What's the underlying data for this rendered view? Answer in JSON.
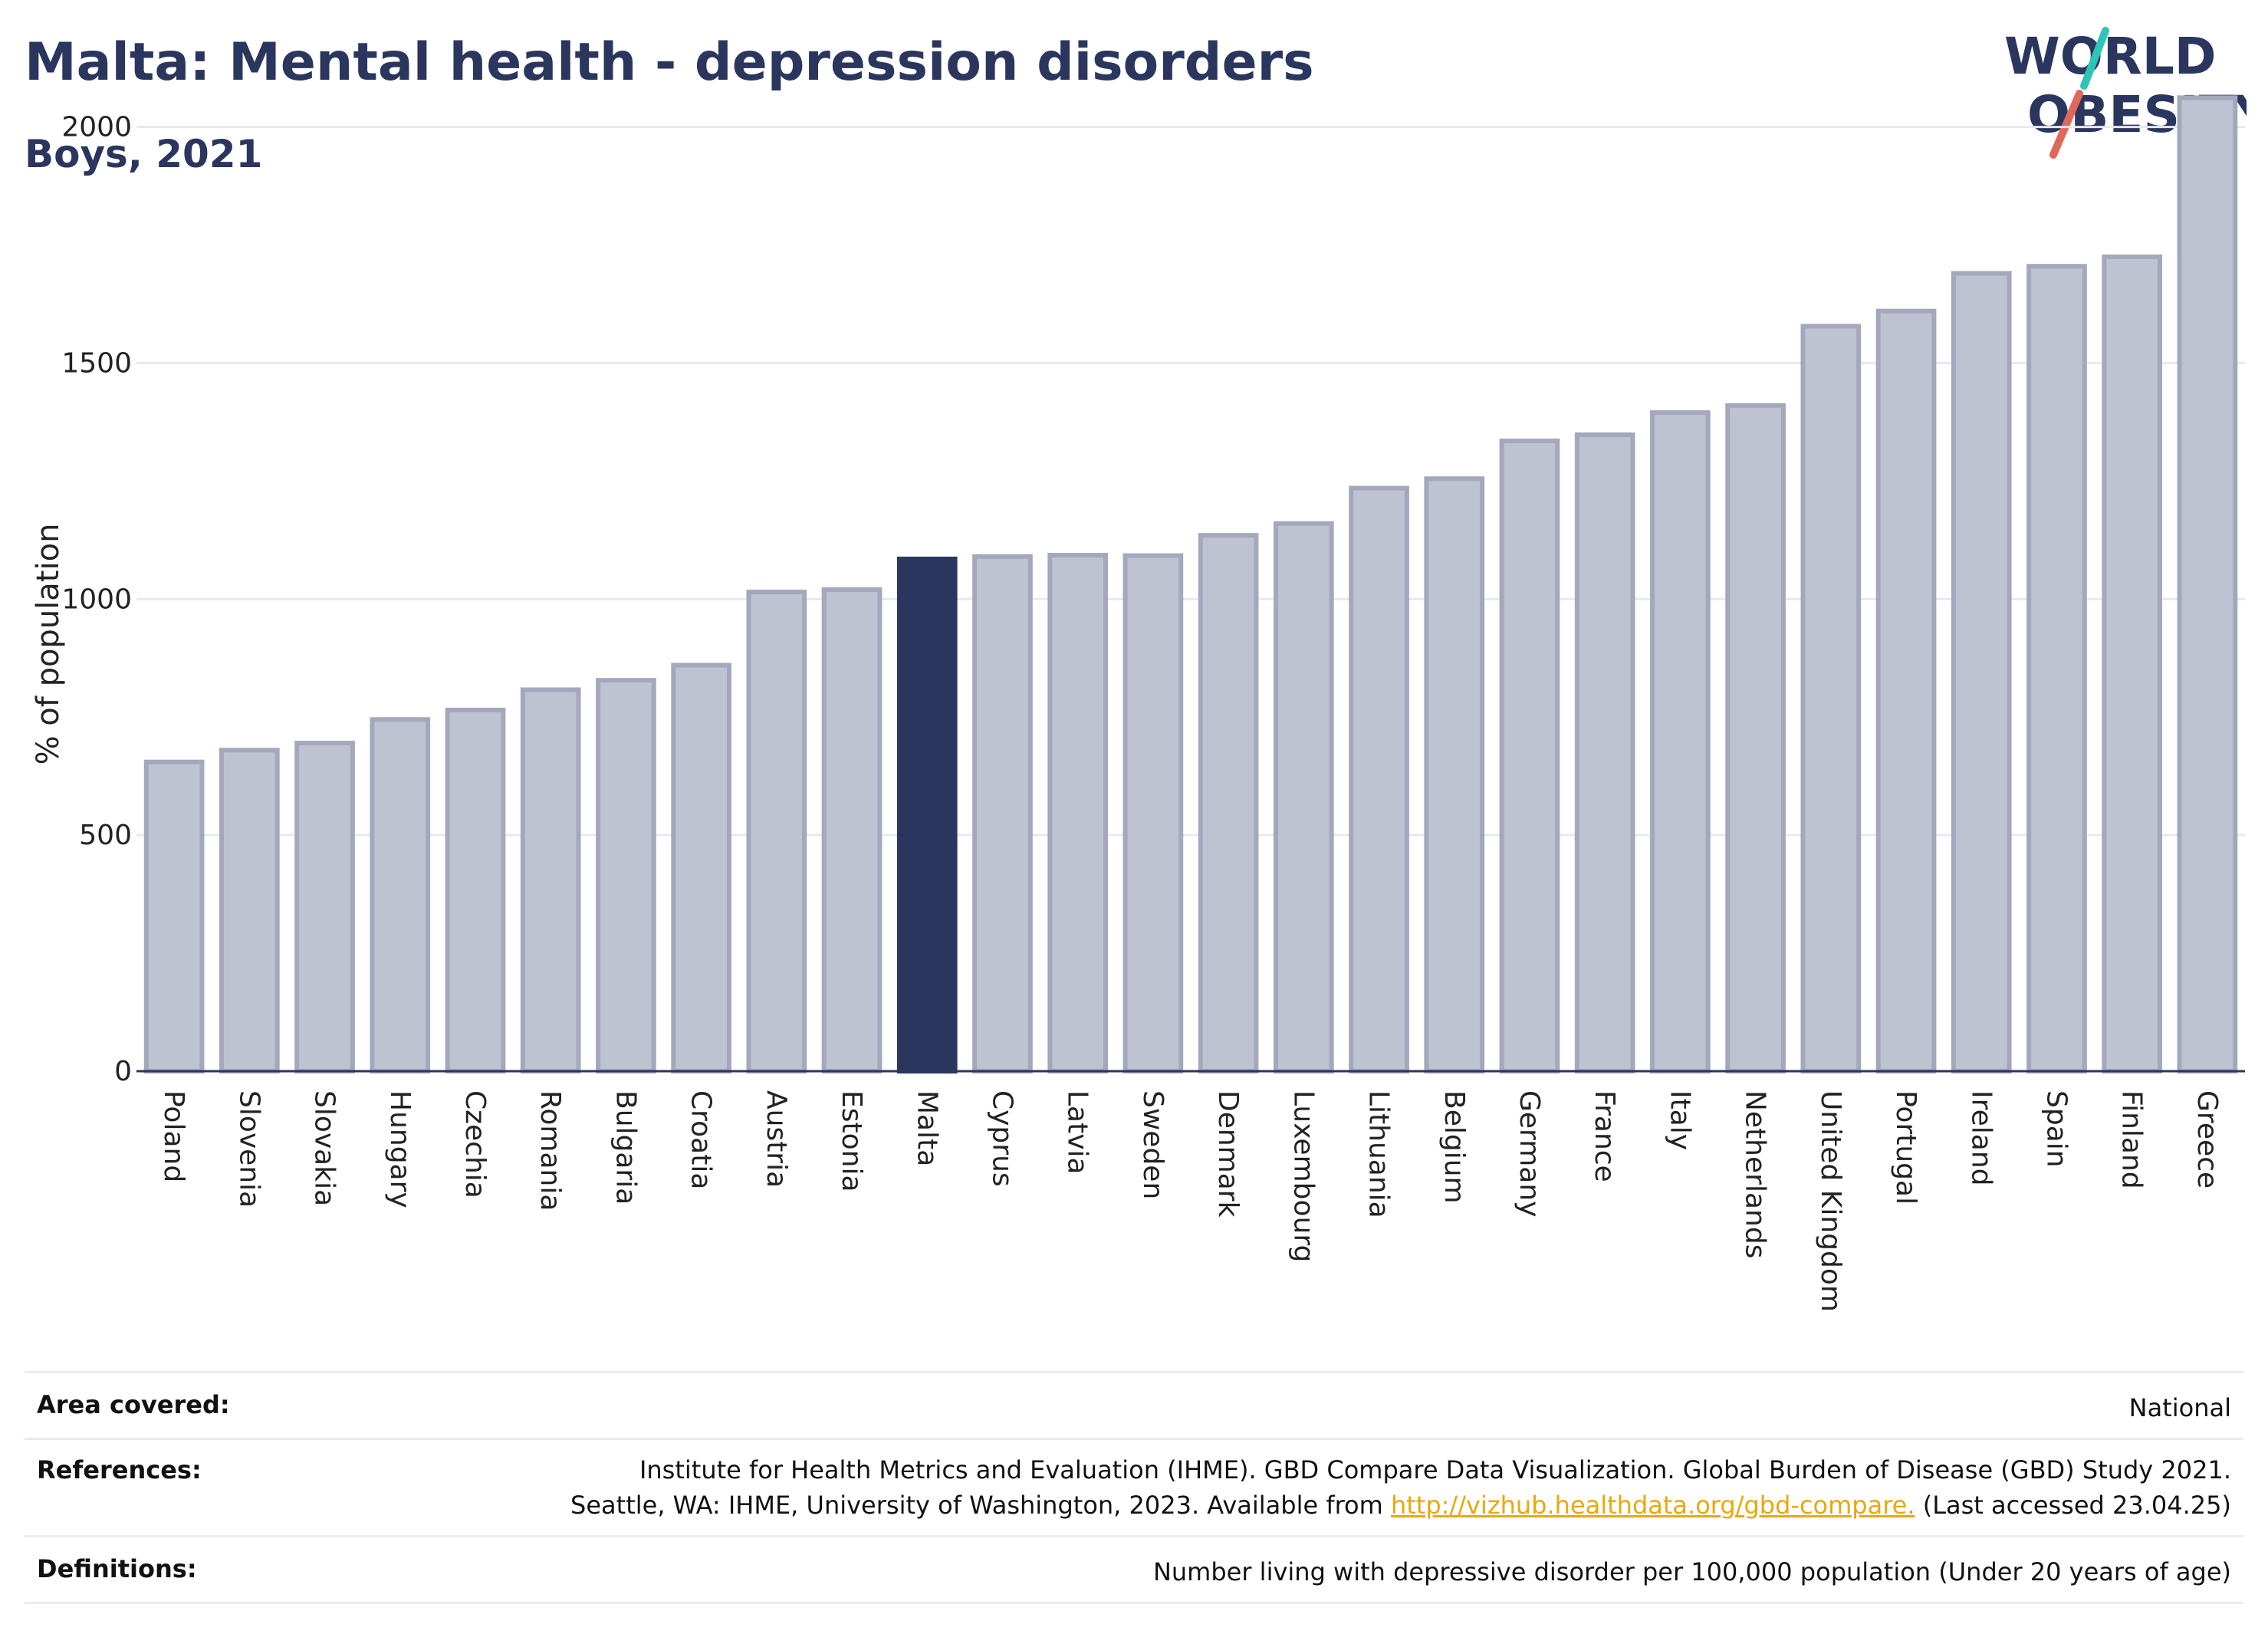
{
  "header": {
    "title": "Malta: Mental health - depression disorders",
    "subtitle": "Boys, 2021"
  },
  "logo": {
    "line1": "WORLD",
    "line2": "OBESITY",
    "slash_colors": [
      "#2ec4b6",
      "#e0685a"
    ]
  },
  "colors": {
    "bar_fill": "#bfc2d0",
    "bar_border": "#a3a8bc",
    "highlight": "#2b365e",
    "grid": "#e6e9f0"
  },
  "chart_data": {
    "type": "bar",
    "ylabel": "% of population",
    "ylim": [
      0,
      2100
    ],
    "yticks": [
      0,
      500,
      1000,
      1500,
      2000
    ],
    "highlight": "Malta",
    "categories": [
      "Poland",
      "Slovenia",
      "Slovakia",
      "Hungary",
      "Czechia",
      "Romania",
      "Bulgaria",
      "Croatia",
      "Austria",
      "Estonia",
      "Malta",
      "Cyprus",
      "Latvia",
      "Sweden",
      "Denmark",
      "Luxembourg",
      "Lithuania",
      "Belgium",
      "Germany",
      "France",
      "Italy",
      "Netherlands",
      "United Kingdom",
      "Portugal",
      "Ireland",
      "Spain",
      "Finland",
      "Greece"
    ],
    "values": [
      655,
      680,
      695,
      745,
      765,
      808,
      828,
      860,
      1015,
      1020,
      1085,
      1090,
      1093,
      1092,
      1135,
      1160,
      1235,
      1255,
      1335,
      1348,
      1395,
      1410,
      1578,
      1610,
      1690,
      1705,
      1725,
      2062
    ]
  },
  "footer": {
    "area_label": "Area covered:",
    "area_value": "National",
    "refs_label": "References:",
    "refs_line1": "Institute for Health Metrics and Evaluation (IHME). GBD Compare Data Visualization. Global Burden of Disease (GBD) Study 2021.",
    "refs_line2_pre": "Seattle, WA: IHME, University of Washington, 2023. Available from",
    "refs_link": "http://vizhub.healthdata.org/gbd-compare.",
    "refs_line2_post": "(Last accessed 23.04.25)",
    "defs_label": "Definitions:",
    "defs_value": "Number living with depressive disorder per 100,000 population (Under 20 years of age)"
  }
}
